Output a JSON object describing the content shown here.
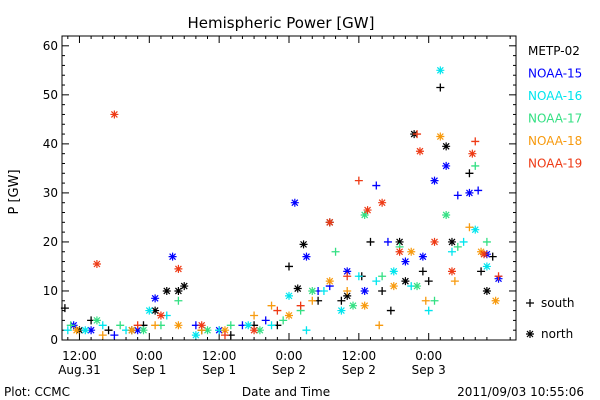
{
  "chart_data": {
    "type": "scatter",
    "title": "Hemispheric Power [GW]",
    "ylabel": "P [GW]",
    "xlabel": "Date and Time",
    "ylim": [
      0,
      62
    ],
    "yticks": [
      0,
      10,
      20,
      30,
      40,
      50,
      60
    ],
    "xlim_hours": [
      -15,
      63
    ],
    "x_tick_labels": [
      {
        "hour": -12,
        "line1": "12:00",
        "line2": "Aug.31"
      },
      {
        "hour": 0,
        "line1": "0:00",
        "line2": "Sep 1"
      },
      {
        "hour": 12,
        "line1": "12:00",
        "line2": "Sep 1"
      },
      {
        "hour": 24,
        "line1": "0:00",
        "line2": "Sep 2"
      },
      {
        "hour": 36,
        "line1": "12:00",
        "line2": "Sep 2"
      },
      {
        "hour": 48,
        "line1": "0:00",
        "line2": "Sep 3"
      }
    ],
    "legend_position": "right",
    "marker_legend": [
      {
        "marker": "+",
        "label": "south"
      },
      {
        "marker": "*",
        "label": "north"
      }
    ],
    "series": [
      {
        "name": "METP-02",
        "color": "#000000",
        "points": [
          [
            -14.5,
            6.5,
            "s"
          ],
          [
            -12,
            2,
            "n"
          ],
          [
            -10,
            4,
            "s"
          ],
          [
            -7,
            2,
            "s"
          ],
          [
            -3,
            2,
            "n"
          ],
          [
            -1,
            3,
            "s"
          ],
          [
            1,
            6,
            "n"
          ],
          [
            3,
            10,
            "n"
          ],
          [
            5,
            10,
            "n"
          ],
          [
            6,
            11,
            "n"
          ],
          [
            9,
            2,
            "s"
          ],
          [
            14,
            1,
            "s"
          ],
          [
            18,
            3,
            "s"
          ],
          [
            22,
            3,
            "s"
          ],
          [
            24,
            15,
            "s"
          ],
          [
            25.5,
            10.5,
            "n"
          ],
          [
            26.5,
            19.5,
            "n"
          ],
          [
            29,
            8,
            "s"
          ],
          [
            31,
            24,
            "n"
          ],
          [
            33,
            8,
            "s"
          ],
          [
            34,
            9,
            "n"
          ],
          [
            36.5,
            13,
            "s"
          ],
          [
            38,
            20,
            "s"
          ],
          [
            40,
            10,
            "s"
          ],
          [
            41.5,
            6,
            "s"
          ],
          [
            43,
            20,
            "n"
          ],
          [
            44,
            12,
            "n"
          ],
          [
            45.5,
            42,
            "n"
          ],
          [
            47,
            14,
            "s"
          ],
          [
            48,
            12,
            "s"
          ],
          [
            50,
            51.5,
            "s"
          ],
          [
            51,
            39.5,
            "n"
          ],
          [
            52,
            20,
            "n"
          ],
          [
            55,
            34,
            "s"
          ],
          [
            57,
            14,
            "s"
          ],
          [
            58,
            10,
            "n"
          ],
          [
            59,
            17,
            "s"
          ]
        ]
      },
      {
        "name": "NOAA-15",
        "color": "#0000ff",
        "points": [
          [
            -13,
            3,
            "n"
          ],
          [
            -10,
            2,
            "n"
          ],
          [
            -6,
            1,
            "s"
          ],
          [
            -2,
            2,
            "n"
          ],
          [
            1,
            8.5,
            "n"
          ],
          [
            4,
            17,
            "n"
          ],
          [
            8,
            3,
            "s"
          ],
          [
            12,
            2,
            "n"
          ],
          [
            16,
            3,
            "s"
          ],
          [
            20,
            4,
            "s"
          ],
          [
            25,
            28,
            "n"
          ],
          [
            27,
            17,
            "n"
          ],
          [
            29,
            10,
            "s"
          ],
          [
            31,
            11,
            "s"
          ],
          [
            34,
            14,
            "n"
          ],
          [
            37,
            10,
            "n"
          ],
          [
            39,
            31.5,
            "s"
          ],
          [
            41,
            20,
            "s"
          ],
          [
            44,
            16,
            "n"
          ],
          [
            47,
            17,
            "n"
          ],
          [
            49,
            32.5,
            "n"
          ],
          [
            51,
            35.5,
            "n"
          ],
          [
            53,
            29.5,
            "s"
          ],
          [
            55,
            30,
            "n"
          ],
          [
            56.5,
            30.5,
            "s"
          ],
          [
            58,
            17.5,
            "n"
          ],
          [
            60,
            12.5,
            "n"
          ]
        ]
      },
      {
        "name": "NOAA-16",
        "color": "#00e5ee",
        "points": [
          [
            -14,
            2,
            "s"
          ],
          [
            -11,
            2,
            "n"
          ],
          [
            -8,
            3,
            "s"
          ],
          [
            -4,
            2,
            "s"
          ],
          [
            0,
            6,
            "n"
          ],
          [
            3,
            5,
            "s"
          ],
          [
            8,
            1,
            "n"
          ],
          [
            12,
            2,
            "s"
          ],
          [
            17,
            3,
            "n"
          ],
          [
            21,
            3,
            "s"
          ],
          [
            24,
            9,
            "n"
          ],
          [
            27,
            2,
            "s"
          ],
          [
            30,
            10,
            "s"
          ],
          [
            33,
            6,
            "n"
          ],
          [
            36,
            13,
            "s"
          ],
          [
            39,
            12,
            "s"
          ],
          [
            42,
            14,
            "n"
          ],
          [
            45,
            11,
            "s"
          ],
          [
            48,
            6,
            "s"
          ],
          [
            50,
            55,
            "n"
          ],
          [
            52,
            18,
            "s"
          ],
          [
            54,
            20,
            "s"
          ],
          [
            56,
            22.5,
            "n"
          ],
          [
            58,
            15,
            "n"
          ]
        ]
      },
      {
        "name": "NOAA-17",
        "color": "#33e083",
        "points": [
          [
            -13.5,
            3,
            "s"
          ],
          [
            -9,
            4,
            "n"
          ],
          [
            -5,
            3,
            "s"
          ],
          [
            -1,
            2,
            "n"
          ],
          [
            2,
            3,
            "s"
          ],
          [
            5,
            8,
            "s"
          ],
          [
            10,
            2,
            "n"
          ],
          [
            14,
            3,
            "s"
          ],
          [
            19,
            2,
            "n"
          ],
          [
            23,
            4,
            "s"
          ],
          [
            26,
            6,
            "s"
          ],
          [
            28,
            10,
            "n"
          ],
          [
            32,
            18,
            "s"
          ],
          [
            35,
            7,
            "n"
          ],
          [
            37,
            25.5,
            "n"
          ],
          [
            40,
            13,
            "s"
          ],
          [
            43,
            19,
            "s"
          ],
          [
            46,
            11,
            "n"
          ],
          [
            49,
            8,
            "s"
          ],
          [
            51,
            25.5,
            "n"
          ],
          [
            53,
            19,
            "s"
          ],
          [
            56,
            35.5,
            "s"
          ],
          [
            58,
            20,
            "s"
          ]
        ]
      },
      {
        "name": "NOAA-18",
        "color": "#f79a0e",
        "points": [
          [
            -12.5,
            2,
            "n"
          ],
          [
            -8,
            1,
            "s"
          ],
          [
            -3,
            2,
            "n"
          ],
          [
            1,
            3,
            "s"
          ],
          [
            5,
            3,
            "n"
          ],
          [
            9,
            2,
            "s"
          ],
          [
            13,
            2,
            "n"
          ],
          [
            18,
            5,
            "s"
          ],
          [
            21,
            7,
            "s"
          ],
          [
            24,
            5,
            "n"
          ],
          [
            28,
            8,
            "s"
          ],
          [
            31,
            12,
            "n"
          ],
          [
            34,
            10,
            "s"
          ],
          [
            37,
            7,
            "n"
          ],
          [
            39.5,
            3,
            "s"
          ],
          [
            42,
            11,
            "n"
          ],
          [
            45,
            18,
            "n"
          ],
          [
            47.5,
            8,
            "s"
          ],
          [
            50,
            41.5,
            "n"
          ],
          [
            52.5,
            12,
            "s"
          ],
          [
            55,
            23,
            "s"
          ],
          [
            57,
            18,
            "n"
          ],
          [
            59.5,
            8,
            "n"
          ]
        ]
      },
      {
        "name": "NOAA-19",
        "color": "#ee3a15",
        "points": [
          [
            -9,
            15.5,
            "n"
          ],
          [
            -6,
            46,
            "n"
          ],
          [
            -2,
            3,
            "s"
          ],
          [
            2,
            5,
            "n"
          ],
          [
            5,
            14.5,
            "n"
          ],
          [
            9,
            3,
            "n"
          ],
          [
            13,
            1,
            "s"
          ],
          [
            18,
            2,
            "n"
          ],
          [
            22,
            6,
            "s"
          ],
          [
            26,
            7,
            "s"
          ],
          [
            31,
            24,
            "n"
          ],
          [
            34,
            13,
            "s"
          ],
          [
            36,
            32.5,
            "s"
          ],
          [
            37.5,
            26.5,
            "n"
          ],
          [
            40,
            28,
            "n"
          ],
          [
            43,
            18,
            "n"
          ],
          [
            46,
            42,
            "s"
          ],
          [
            46.5,
            38.5,
            "n"
          ],
          [
            49,
            20,
            "n"
          ],
          [
            52,
            14,
            "n"
          ],
          [
            55.5,
            38,
            "n"
          ],
          [
            56,
            40.5,
            "s"
          ],
          [
            57.5,
            17.5,
            "n"
          ],
          [
            60,
            13,
            "s"
          ]
        ]
      }
    ]
  },
  "footer": {
    "plot_credit": "Plot: CCMC",
    "timestamp": "2011/09/03 10:55:06"
  }
}
